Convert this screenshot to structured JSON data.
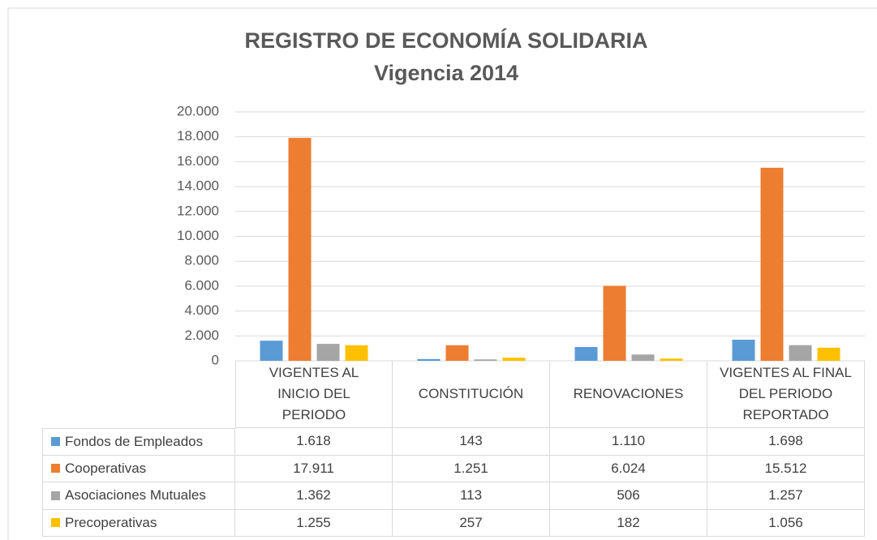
{
  "chart_data": {
    "type": "bar",
    "title": "REGISTRO DE ECONOMÍA SOLIDARIA",
    "subtitle": "Vigencia 2014",
    "categories": [
      "VIGENTES AL INICIO DEL PERIODO",
      "CONSTITUCIÓN",
      "RENOVACIONES",
      "VIGENTES AL FINAL DEL PERIODO REPORTADO"
    ],
    "series": [
      {
        "name": "Fondos de Empleados",
        "color": "#5b9bd5",
        "values": [
          1618,
          143,
          1110,
          1698
        ],
        "value_labels": [
          "1.618",
          "143",
          "1.110",
          "1.698"
        ]
      },
      {
        "name": "Cooperativas",
        "color": "#ed7d31",
        "values": [
          17911,
          1251,
          6024,
          15512
        ],
        "value_labels": [
          "17.911",
          "1.251",
          "6.024",
          "15.512"
        ]
      },
      {
        "name": "Asociaciones Mutuales",
        "color": "#a5a5a5",
        "values": [
          1362,
          113,
          506,
          1257
        ],
        "value_labels": [
          "1.362",
          "113",
          "506",
          "1.257"
        ]
      },
      {
        "name": "Precoperativas",
        "color": "#ffc000",
        "values": [
          1255,
          257,
          182,
          1056
        ],
        "value_labels": [
          "1.255",
          "257",
          "182",
          "1.056"
        ]
      }
    ],
    "ylim": [
      0,
      20000
    ],
    "yticks": [
      0,
      {
        "value": 2000,
        "label": "2.000"
      },
      {
        "value": 4000,
        "label": "4.000"
      },
      {
        "value": 6000,
        "label": "6.000"
      },
      {
        "value": 8000,
        "label": "8.000"
      },
      {
        "value": 10000,
        "label": "10.000"
      },
      {
        "value": 12000,
        "label": "12.000"
      },
      {
        "value": 14000,
        "label": "14.000"
      },
      {
        "value": 16000,
        "label": "16.000"
      },
      {
        "value": 18000,
        "label": "18.000"
      },
      {
        "value": 20000,
        "label": "20.000"
      }
    ],
    "grid": true
  }
}
